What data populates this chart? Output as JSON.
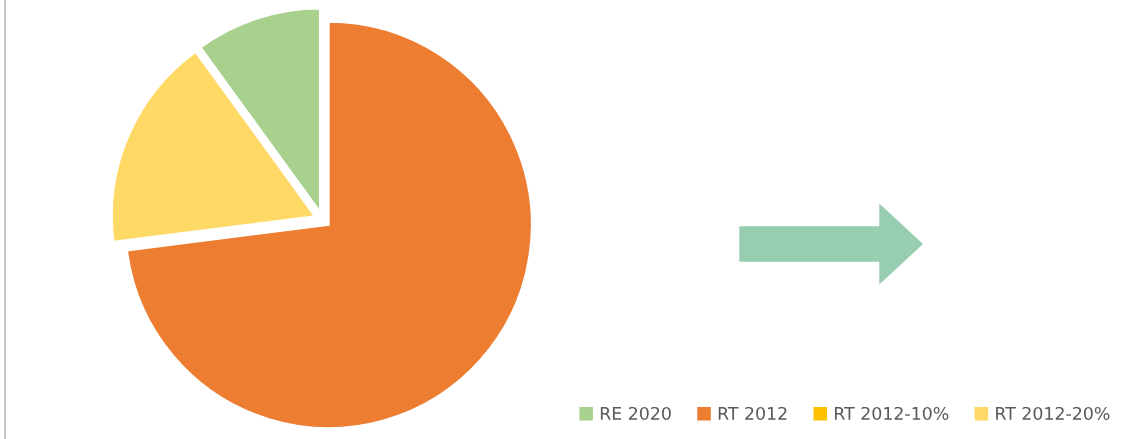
{
  "chart_data": {
    "type": "pie",
    "categories": [
      "RE 2020",
      "RT 2012",
      "RT 2012-10%",
      "RT 2012-20%"
    ],
    "values": [
      10,
      73,
      0,
      17
    ],
    "colors": [
      "#a9d18e",
      "#ed7d31",
      "#ffc000",
      "#ffd966"
    ],
    "legend": "bottom right"
  }
}
